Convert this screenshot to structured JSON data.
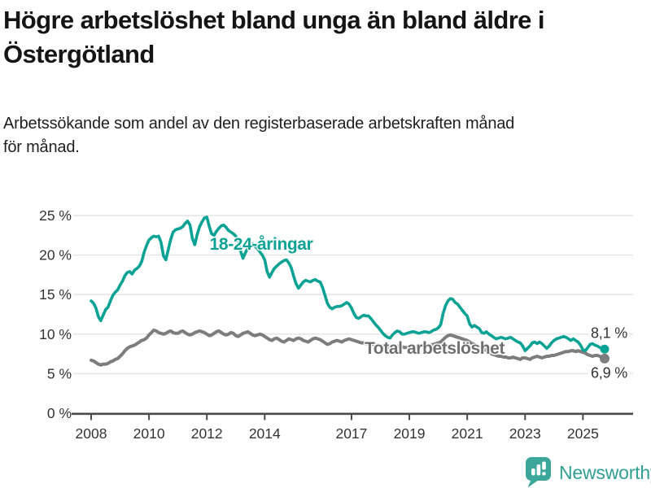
{
  "title_lines": [
    "Högre arbetslöshet bland unga än bland äldre i",
    "Östergötland"
  ],
  "subtitle_lines": [
    "Arbetssökande som andel av den registerbaserade arbetskraften månad",
    "för månad."
  ],
  "branding": {
    "logo_text": "Newsworthy",
    "logo_color": "#2f9e93"
  },
  "chart_data": {
    "type": "line",
    "x_unit": "month",
    "x_start": "2008-01",
    "x_end": "2025-10",
    "x_tick_labels": [
      "2008",
      "2010",
      "2012",
      "2014",
      "2017",
      "2019",
      "2021",
      "2023",
      "2025"
    ],
    "y_ticks": [
      {
        "label": "0 %",
        "value": 0
      },
      {
        "label": "5 %",
        "value": 5
      },
      {
        "label": "10 %",
        "value": 10
      },
      {
        "label": "15 %",
        "value": 15
      },
      {
        "label": "20 %",
        "value": 20
      },
      {
        "label": "25 %",
        "value": 25
      }
    ],
    "ylim": [
      0,
      25
    ],
    "grid": true,
    "series": [
      {
        "name": "18-24-åringar",
        "color": "#0ba296",
        "end_label": "8,1 %",
        "last_value": 8.1,
        "values": [
          14.2,
          13.9,
          13.3,
          12.2,
          11.7,
          12.4,
          13.1,
          13.4,
          14.2,
          14.9,
          15.3,
          15.6,
          16.2,
          16.7,
          17.4,
          17.8,
          17.9,
          17.6,
          18.1,
          18.3,
          18.6,
          19.2,
          20.4,
          21.2,
          21.9,
          22.2,
          22.4,
          22.3,
          22.4,
          21.6,
          19.9,
          19.4,
          20.7,
          22.0,
          22.9,
          23.2,
          23.3,
          23.4,
          23.6,
          24.0,
          24.3,
          23.8,
          22.1,
          21.3,
          22.6,
          23.6,
          24.2,
          24.7,
          24.8,
          23.6,
          22.7,
          22.5,
          23.0,
          23.4,
          23.7,
          23.8,
          23.5,
          23.1,
          22.9,
          22.7,
          22.4,
          21.6,
          20.5,
          19.6,
          20.3,
          20.9,
          21.2,
          21.4,
          21.1,
          20.8,
          20.4,
          20.0,
          19.4,
          17.9,
          17.2,
          17.8,
          18.3,
          18.6,
          18.9,
          19.1,
          19.3,
          19.4,
          19.0,
          18.4,
          17.3,
          16.4,
          15.8,
          16.2,
          16.6,
          16.8,
          16.7,
          16.6,
          16.8,
          16.9,
          16.7,
          16.6,
          15.9,
          14.9,
          13.9,
          13.4,
          13.2,
          13.4,
          13.5,
          13.5,
          13.6,
          13.8,
          14.0,
          13.8,
          13.3,
          12.6,
          12.1,
          12.0,
          12.2,
          12.4,
          12.3,
          12.3,
          12.0,
          11.6,
          11.2,
          10.9,
          10.5,
          10.1,
          9.8,
          9.6,
          9.5,
          9.9,
          10.2,
          10.4,
          10.3,
          10.0,
          10.0,
          10.1,
          10.2,
          10.3,
          10.3,
          10.2,
          10.1,
          10.2,
          10.3,
          10.3,
          10.2,
          10.3,
          10.5,
          10.6,
          10.8,
          11.2,
          12.6,
          13.6,
          14.2,
          14.5,
          14.4,
          14.0,
          13.8,
          13.4,
          13.0,
          12.6,
          12.3,
          11.3,
          10.9,
          11.1,
          10.9,
          10.7,
          10.2,
          10.1,
          10.3,
          10.0,
          9.8,
          9.6,
          9.4,
          9.5,
          9.6,
          9.5,
          9.4,
          9.5,
          9.6,
          9.4,
          9.2,
          9.0,
          8.9,
          8.5,
          7.9,
          8.2,
          8.5,
          8.9,
          9.0,
          8.8,
          9.0,
          8.8,
          8.5,
          8.2,
          8.5,
          8.9,
          9.2,
          9.4,
          9.5,
          9.6,
          9.7,
          9.6,
          9.4,
          9.2,
          9.4,
          9.2,
          9.0,
          8.6,
          8.0,
          7.9,
          8.3,
          8.7,
          8.8,
          8.6,
          8.5,
          8.3,
          8.2,
          8.1
        ]
      },
      {
        "name": "Total arbetslöshet",
        "color": "#7d7d7d",
        "label_color": "#6f6f6f",
        "end_label": "6,9 %",
        "last_value": 6.9,
        "values": [
          6.7,
          6.6,
          6.4,
          6.2,
          6.1,
          6.2,
          6.2,
          6.3,
          6.5,
          6.6,
          6.8,
          6.9,
          7.2,
          7.5,
          7.9,
          8.2,
          8.4,
          8.5,
          8.6,
          8.8,
          9.0,
          9.2,
          9.3,
          9.5,
          9.9,
          10.2,
          10.5,
          10.4,
          10.2,
          10.1,
          10.0,
          10.1,
          10.3,
          10.4,
          10.2,
          10.1,
          10.1,
          10.3,
          10.4,
          10.2,
          10.0,
          9.9,
          10.0,
          10.2,
          10.3,
          10.4,
          10.3,
          10.2,
          10.0,
          9.8,
          9.9,
          10.1,
          10.3,
          10.4,
          10.2,
          10.0,
          9.9,
          10.0,
          10.2,
          10.1,
          9.8,
          9.7,
          9.9,
          10.1,
          10.2,
          10.3,
          10.1,
          9.9,
          9.8,
          9.9,
          10.0,
          9.9,
          9.7,
          9.5,
          9.3,
          9.2,
          9.4,
          9.5,
          9.3,
          9.1,
          9.0,
          9.2,
          9.4,
          9.3,
          9.2,
          9.4,
          9.5,
          9.4,
          9.2,
          9.1,
          9.0,
          9.2,
          9.4,
          9.5,
          9.4,
          9.3,
          9.1,
          8.9,
          8.7,
          8.8,
          9.0,
          9.1,
          9.2,
          9.1,
          9.0,
          9.2,
          9.3,
          9.4,
          9.3,
          9.2,
          9.1,
          9.0,
          8.9,
          8.9,
          8.8,
          8.8,
          8.7,
          8.7,
          8.6,
          8.6,
          8.5,
          8.5,
          8.4,
          8.4,
          8.3,
          8.4,
          8.5,
          8.5,
          8.4,
          8.4,
          8.3,
          8.3,
          8.3,
          8.4,
          8.4,
          8.4,
          8.5,
          8.5,
          8.6,
          8.6,
          8.5,
          8.6,
          8.7,
          8.8,
          8.9,
          9.0,
          9.3,
          9.6,
          9.8,
          9.9,
          9.8,
          9.7,
          9.6,
          9.5,
          9.4,
          9.3,
          9.2,
          9.0,
          8.8,
          8.7,
          8.5,
          8.4,
          8.2,
          8.1,
          7.9,
          7.7,
          7.5,
          7.4,
          7.3,
          7.2,
          7.2,
          7.1,
          7.1,
          7.0,
          7.0,
          7.1,
          7.0,
          6.9,
          6.8,
          7.0,
          7.0,
          6.9,
          6.8,
          7.0,
          7.1,
          7.2,
          7.1,
          7.0,
          7.1,
          7.2,
          7.2,
          7.3,
          7.3,
          7.4,
          7.5,
          7.6,
          7.7,
          7.8,
          7.8,
          7.9,
          7.9,
          7.8,
          7.9,
          7.8,
          7.7,
          7.6,
          7.4,
          7.3,
          7.2,
          7.3,
          7.3,
          7.2,
          7.1,
          6.9
        ]
      }
    ]
  }
}
